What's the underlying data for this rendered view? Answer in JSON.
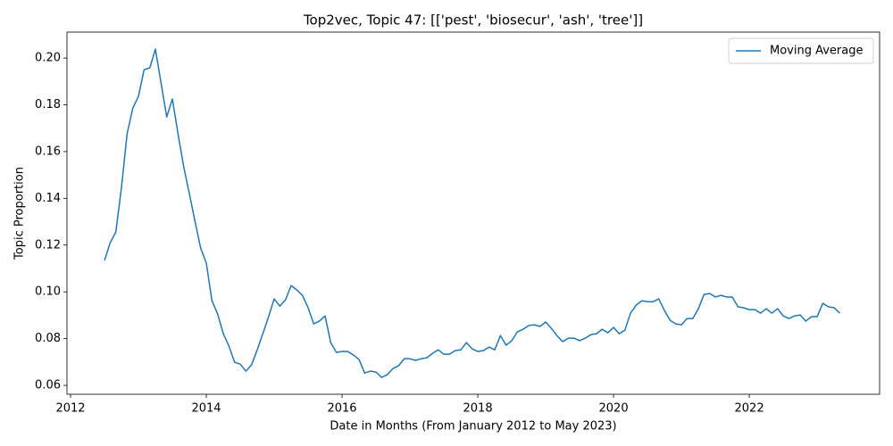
{
  "chart_data": {
    "type": "line",
    "title": "Top2vec, Topic 47: [['pest', 'biosecur', 'ash', 'tree']]",
    "xlabel": "Date in Months (From January 2012 to May 2023)",
    "ylabel": "Topic Proportion",
    "x": [
      2012.5,
      2012.583,
      2012.667,
      2012.75,
      2012.833,
      2012.917,
      2013.0,
      2013.083,
      2013.167,
      2013.25,
      2013.333,
      2013.417,
      2013.5,
      2013.583,
      2013.667,
      2013.75,
      2013.833,
      2013.917,
      2014.0,
      2014.083,
      2014.167,
      2014.25,
      2014.333,
      2014.417,
      2014.5,
      2014.583,
      2014.667,
      2014.75,
      2014.833,
      2014.917,
      2015.0,
      2015.083,
      2015.167,
      2015.25,
      2015.333,
      2015.417,
      2015.5,
      2015.583,
      2015.667,
      2015.75,
      2015.833,
      2015.917,
      2016.0,
      2016.083,
      2016.167,
      2016.25,
      2016.333,
      2016.417,
      2016.5,
      2016.583,
      2016.667,
      2016.75,
      2016.833,
      2016.917,
      2017.0,
      2017.083,
      2017.167,
      2017.25,
      2017.333,
      2017.417,
      2017.5,
      2017.583,
      2017.667,
      2017.75,
      2017.833,
      2017.917,
      2018.0,
      2018.083,
      2018.167,
      2018.25,
      2018.333,
      2018.417,
      2018.5,
      2018.583,
      2018.667,
      2018.75,
      2018.833,
      2018.917,
      2019.0,
      2019.083,
      2019.167,
      2019.25,
      2019.333,
      2019.417,
      2019.5,
      2019.583,
      2019.667,
      2019.75,
      2019.833,
      2019.917,
      2020.0,
      2020.083,
      2020.167,
      2020.25,
      2020.333,
      2020.417,
      2020.5,
      2020.583,
      2020.667,
      2020.75,
      2020.833,
      2020.917,
      2021.0,
      2021.083,
      2021.167,
      2021.25,
      2021.333,
      2021.417,
      2021.5,
      2021.583,
      2021.667,
      2021.75,
      2021.833,
      2021.917,
      2022.0,
      2022.083,
      2022.167,
      2022.25,
      2022.333,
      2022.417,
      2022.5,
      2022.583,
      2022.667,
      2022.75,
      2022.833,
      2022.917,
      2023.0,
      2023.083,
      2023.167,
      2023.25,
      2023.333
    ],
    "series": [
      {
        "name": "Moving Average",
        "color": "#1f77b4",
        "values": [
          0.1134,
          0.121,
          0.1256,
          0.1447,
          0.1676,
          0.1786,
          0.1836,
          0.195,
          0.1958,
          0.2038,
          0.1893,
          0.1748,
          0.1825,
          0.1676,
          0.1535,
          0.142,
          0.1302,
          0.1187,
          0.1123,
          0.0962,
          0.0905,
          0.0821,
          0.0768,
          0.0699,
          0.0691,
          0.0661,
          0.0688,
          0.0752,
          0.0821,
          0.0894,
          0.097,
          0.0939,
          0.0966,
          0.1027,
          0.1008,
          0.0985,
          0.0932,
          0.0863,
          0.0875,
          0.0897,
          0.0783,
          0.0741,
          0.0745,
          0.0745,
          0.073,
          0.0711,
          0.0653,
          0.0661,
          0.0657,
          0.0634,
          0.0646,
          0.0672,
          0.0684,
          0.0714,
          0.0714,
          0.0707,
          0.0714,
          0.0718,
          0.0737,
          0.0752,
          0.0733,
          0.0733,
          0.0749,
          0.0752,
          0.0783,
          0.0756,
          0.0745,
          0.0749,
          0.0764,
          0.0752,
          0.0813,
          0.0772,
          0.0791,
          0.0829,
          0.084,
          0.0856,
          0.0859,
          0.0852,
          0.0871,
          0.0844,
          0.0813,
          0.0787,
          0.0802,
          0.0802,
          0.0791,
          0.0802,
          0.0817,
          0.0821,
          0.084,
          0.0825,
          0.0848,
          0.0821,
          0.0836,
          0.0909,
          0.0943,
          0.0962,
          0.0958,
          0.0958,
          0.097,
          0.092,
          0.0878,
          0.0863,
          0.0859,
          0.0886,
          0.0886,
          0.0928,
          0.0989,
          0.0993,
          0.0978,
          0.0985,
          0.0978,
          0.0978,
          0.0936,
          0.0932,
          0.0924,
          0.0924,
          0.0909,
          0.0928,
          0.0909,
          0.0928,
          0.0897,
          0.0886,
          0.0897,
          0.0901,
          0.0875,
          0.0894,
          0.0894,
          0.0951,
          0.0936,
          0.0932,
          0.0909
        ]
      }
    ],
    "xlim": [
      2011.947,
      2023.92
    ],
    "xticks": [
      2012,
      2014,
      2016,
      2018,
      2020,
      2022
    ],
    "ylim": [
      0.0562,
      0.2111
    ],
    "yticks": [
      0.06,
      0.08,
      {
        "value": 0.1,
        "label": "0.10"
      },
      0.12,
      0.14,
      0.16,
      0.18,
      {
        "value": 0.2,
        "label": "0.20"
      }
    ],
    "grid": false,
    "legend": "upper right"
  }
}
